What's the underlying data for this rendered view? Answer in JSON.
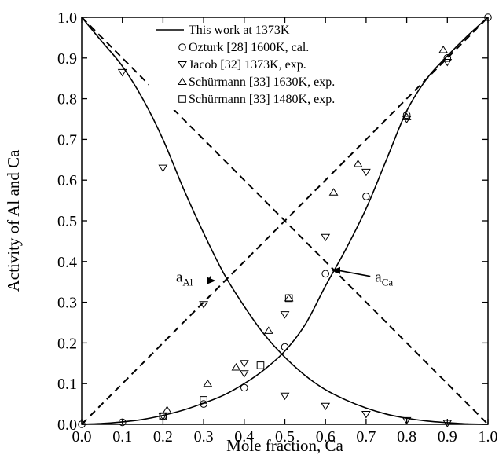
{
  "chart_data": {
    "type": "scatter",
    "title": "",
    "xlabel": "Mole fraction, Ca",
    "ylabel": "Activity of Al and Ca",
    "xlim": [
      0.0,
      1.0
    ],
    "ylim": [
      0.0,
      1.0
    ],
    "x_ticks": [
      "0.0",
      "0.1",
      "0.2",
      "0.3",
      "0.4",
      "0.5",
      "0.6",
      "0.7",
      "0.8",
      "0.9",
      "1.0"
    ],
    "y_ticks": [
      "0.0",
      "0.1",
      "0.2",
      "0.3",
      "0.4",
      "0.5",
      "0.6",
      "0.7",
      "0.8",
      "0.9",
      "1.0"
    ],
    "grid": false,
    "legend_position": "top-center",
    "series": [
      {
        "name": "This work at 1373K",
        "marker": "line",
        "curves": [
          {
            "label": "a_Al",
            "x": [
              0.0,
              0.05,
              0.1,
              0.15,
              0.2,
              0.25,
              0.3,
              0.35,
              0.4,
              0.45,
              0.5,
              0.55,
              0.6,
              0.65,
              0.7,
              0.75,
              0.8,
              0.85,
              0.9,
              0.95,
              1.0
            ],
            "y": [
              1.0,
              0.94,
              0.88,
              0.8,
              0.7,
              0.58,
              0.47,
              0.37,
              0.29,
              0.22,
              0.165,
              0.12,
              0.085,
              0.06,
              0.04,
              0.025,
              0.015,
              0.008,
              0.004,
              0.001,
              0.0
            ]
          },
          {
            "label": "a_Ca",
            "x": [
              0.0,
              0.05,
              0.1,
              0.15,
              0.2,
              0.25,
              0.3,
              0.35,
              0.4,
              0.45,
              0.5,
              0.55,
              0.6,
              0.65,
              0.7,
              0.75,
              0.8,
              0.85,
              0.9,
              0.95,
              1.0
            ],
            "y": [
              0.0,
              0.002,
              0.006,
              0.012,
              0.022,
              0.035,
              0.052,
              0.072,
              0.1,
              0.135,
              0.18,
              0.245,
              0.34,
              0.43,
              0.53,
              0.65,
              0.77,
              0.85,
              0.905,
              0.955,
              1.0
            ]
          }
        ]
      },
      {
        "name": "Ozturk [28] 1600K, cal.",
        "marker": "circle",
        "x": [
          0.0,
          0.1,
          0.2,
          0.3,
          0.4,
          0.5,
          0.6,
          0.7,
          0.8,
          0.9,
          1.0
        ],
        "y": [
          0.0,
          0.005,
          0.02,
          0.05,
          0.09,
          0.19,
          0.37,
          0.56,
          0.76,
          0.9,
          1.0
        ]
      },
      {
        "name": "Jacob [32] 1373K, exp.",
        "marker": "triangle-down",
        "x": [
          0.1,
          0.2,
          0.3,
          0.4,
          0.5,
          0.6,
          0.7,
          0.8,
          0.9,
          0.2,
          0.4,
          0.5,
          0.6,
          0.7,
          0.8,
          0.9
        ],
        "y": [
          0.865,
          0.63,
          0.295,
          0.125,
          0.07,
          0.045,
          0.025,
          0.01,
          0.003,
          0.02,
          0.15,
          0.27,
          0.46,
          0.62,
          0.75,
          0.89
        ]
      },
      {
        "name": "Schürmann [33] 1630K, exp.",
        "marker": "triangle-up",
        "x": [
          0.21,
          0.31,
          0.38,
          0.46,
          0.51,
          0.62,
          0.68,
          0.8,
          0.89
        ],
        "y": [
          0.035,
          0.1,
          0.14,
          0.23,
          0.31,
          0.57,
          0.64,
          0.755,
          0.92
        ]
      },
      {
        "name": "Schürmann [33] 1480K, exp.",
        "marker": "square",
        "x": [
          0.2,
          0.3,
          0.44,
          0.51
        ],
        "y": [
          0.02,
          0.06,
          0.145,
          0.31
        ]
      }
    ],
    "ideal_lines": [
      {
        "x": [
          0.0,
          1.0
        ],
        "y": [
          1.0,
          0.0
        ],
        "style": "dashed"
      },
      {
        "x": [
          0.0,
          1.0
        ],
        "y": [
          0.0,
          1.0
        ],
        "style": "dashed"
      }
    ],
    "annotations": [
      {
        "base": "a",
        "sub": "Al",
        "x": 0.232,
        "y": 0.35,
        "arrow_to": [
          0.33,
          0.353
        ]
      },
      {
        "base": "a",
        "sub": "Ca",
        "x": 0.722,
        "y": 0.35,
        "arrow_to": [
          0.615,
          0.378
        ]
      }
    ]
  }
}
